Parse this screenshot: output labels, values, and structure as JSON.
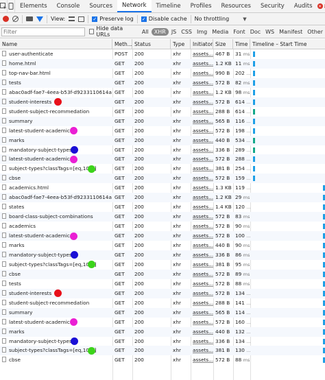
{
  "tabs": [
    "Elements",
    "Console",
    "Sources",
    "Network",
    "Timeline",
    "Profiles",
    "Resources",
    "Security",
    "Audits"
  ],
  "active_tab": "Network",
  "error_count": "8",
  "toolbar": {
    "view_label": "View:",
    "preserve_log": "Preserve log",
    "disable_cache": "Disable cache",
    "throttling": "No throttling"
  },
  "filter": {
    "placeholder": "Filter",
    "hide_data_urls": "Hide data URLs",
    "types": [
      "All",
      "XHR",
      "JS",
      "CSS",
      "Img",
      "Media",
      "Font",
      "Doc",
      "WS",
      "Manifest",
      "Other"
    ],
    "active_type": "XHR"
  },
  "columns": {
    "name": "Name",
    "method": "Meth...",
    "status": "Status",
    "type": "Type",
    "initiator": "Initiator",
    "size": "Size",
    "time": "Time",
    "timeline": "Timeline – Start Time"
  },
  "colors": {
    "red": "#e8101a",
    "magenta": "#ea1fd4",
    "blue": "#1a0fd6",
    "green": "#3cd41a",
    "bar": "#1e9fe6",
    "bar_teal": "#13a88a"
  },
  "rows": [
    {
      "name": "user-authenticate",
      "method": "POST",
      "status": "200",
      "type": "xhr",
      "initiator": "assets...",
      "size": "467 B",
      "time": "31",
      "time_unit": "ms",
      "marker": "",
      "bar_pos": 0.04,
      "bar_color": "blue"
    },
    {
      "name": "home.html",
      "method": "GET",
      "status": "200",
      "type": "xhr",
      "initiator": "assets...",
      "size": "1.2 KB",
      "time": "11",
      "time_unit": "ms",
      "marker": "",
      "bar_pos": 0.04,
      "bar_color": "blue"
    },
    {
      "name": "top-nav-bar.html",
      "method": "GET",
      "status": "200",
      "type": "xhr",
      "initiator": "assets...",
      "size": "990 B",
      "time": "202",
      "time_unit": "...",
      "marker": "",
      "bar_pos": 0.04,
      "bar_color": "blue"
    },
    {
      "name": "tests",
      "method": "GET",
      "status": "200",
      "type": "xhr",
      "initiator": "assets...",
      "size": "572 B",
      "time": "82",
      "time_unit": "ms",
      "marker": "",
      "bar_pos": 0.04,
      "bar_color": "blue"
    },
    {
      "name": "abac0adf-fae7-4eea-b53f-d9233110614a",
      "method": "GET",
      "status": "200",
      "type": "xhr",
      "initiator": "assets...",
      "size": "1.2 KB",
      "time": "98",
      "time_unit": "ms",
      "marker": "",
      "bar_pos": 0.04,
      "bar_color": "blue"
    },
    {
      "name": "student-interests",
      "method": "GET",
      "status": "200",
      "type": "xhr",
      "initiator": "assets...",
      "size": "572 B",
      "time": "614",
      "time_unit": "...",
      "marker": "red",
      "bar_pos": 0.04,
      "bar_color": "blue"
    },
    {
      "name": "student-subject-recommedation",
      "method": "GET",
      "status": "200",
      "type": "xhr",
      "initiator": "assets...",
      "size": "288 B",
      "time": "614",
      "time_unit": "...",
      "marker": "",
      "bar_pos": 0.04,
      "bar_color": "teal"
    },
    {
      "name": "summary",
      "method": "GET",
      "status": "200",
      "type": "xhr",
      "initiator": "assets...",
      "size": "565 B",
      "time": "116",
      "time_unit": "...",
      "marker": "",
      "bar_pos": 0.04,
      "bar_color": "blue"
    },
    {
      "name": "latest-student-academic",
      "method": "GET",
      "status": "200",
      "type": "xhr",
      "initiator": "assets...",
      "size": "572 B",
      "time": "198",
      "time_unit": "...",
      "marker": "magenta",
      "bar_pos": 0.04,
      "bar_color": "blue"
    },
    {
      "name": "marks",
      "method": "GET",
      "status": "200",
      "type": "xhr",
      "initiator": "assets...",
      "size": "440 B",
      "time": "534",
      "time_unit": "...",
      "marker": "",
      "bar_pos": 0.04,
      "bar_color": "teal"
    },
    {
      "name": "mandatory-subject-types",
      "method": "GET",
      "status": "200",
      "type": "xhr",
      "initiator": "assets...",
      "size": "336 B",
      "time": "289",
      "time_unit": "...",
      "marker": "blue",
      "bar_pos": 0.04,
      "bar_color": "teal"
    },
    {
      "name": "latest-student-academic",
      "method": "GET",
      "status": "200",
      "type": "xhr",
      "initiator": "assets...",
      "size": "572 B",
      "time": "288",
      "time_unit": "...",
      "marker": "magenta",
      "bar_pos": 0.04,
      "bar_color": "blue"
    },
    {
      "name": "subject-types?classTags=[eq,10th]",
      "method": "GET",
      "status": "200",
      "type": "xhr",
      "initiator": "assets...",
      "size": "381 B",
      "time": "254",
      "time_unit": "...",
      "marker": "green",
      "bar_pos": 0.04,
      "bar_color": "blue"
    },
    {
      "name": "cbse",
      "method": "GET",
      "status": "200",
      "type": "xhr",
      "initiator": "assets...",
      "size": "572 B",
      "time": "159",
      "time_unit": "...",
      "marker": "",
      "bar_pos": 0.04,
      "bar_color": "blue"
    },
    {
      "name": "academics.html",
      "method": "GET",
      "status": "200",
      "type": "xhr",
      "initiator": "assets...",
      "size": "1.3 KB",
      "time": "119",
      "time_unit": "...",
      "marker": "",
      "bar_pos": 0.97,
      "bar_color": "blue"
    },
    {
      "name": "abac0adf-fae7-4eea-b53f-d9233110614a",
      "method": "GET",
      "status": "200",
      "type": "xhr",
      "initiator": "assets...",
      "size": "1.2 KB",
      "time": "29",
      "time_unit": "ms",
      "marker": "",
      "bar_pos": 0.97,
      "bar_color": "blue"
    },
    {
      "name": "states",
      "method": "GET",
      "status": "200",
      "type": "xhr",
      "initiator": "assets...",
      "size": "1.4 KB",
      "time": "120",
      "time_unit": "...",
      "marker": "",
      "bar_pos": 0.97,
      "bar_color": "blue"
    },
    {
      "name": "board-class-subject-combinations",
      "method": "GET",
      "status": "200",
      "type": "xhr",
      "initiator": "assets...",
      "size": "572 B",
      "time": "83",
      "time_unit": "ms",
      "marker": "",
      "bar_pos": 0.97,
      "bar_color": "blue"
    },
    {
      "name": "academics",
      "method": "GET",
      "status": "200",
      "type": "xhr",
      "initiator": "assets...",
      "size": "572 B",
      "time": "90",
      "time_unit": "ms",
      "marker": "",
      "bar_pos": 0.97,
      "bar_color": "blue"
    },
    {
      "name": "latest-student-academic",
      "method": "GET",
      "status": "200",
      "type": "xhr",
      "initiator": "assets...",
      "size": "572 B",
      "time": "100",
      "time_unit": "...",
      "marker": "magenta",
      "bar_pos": 0.97,
      "bar_color": "blue"
    },
    {
      "name": "marks",
      "method": "GET",
      "status": "200",
      "type": "xhr",
      "initiator": "assets...",
      "size": "440 B",
      "time": "90",
      "time_unit": "ms",
      "marker": "",
      "bar_pos": 0.97,
      "bar_color": "blue"
    },
    {
      "name": "mandatory-subject-types",
      "method": "GET",
      "status": "200",
      "type": "xhr",
      "initiator": "assets...",
      "size": "336 B",
      "time": "86",
      "time_unit": "ms",
      "marker": "blue",
      "bar_pos": 0.97,
      "bar_color": "blue"
    },
    {
      "name": "subject-types?classTags=[eq,10th]",
      "method": "GET",
      "status": "200",
      "type": "xhr",
      "initiator": "assets...",
      "size": "381 B",
      "time": "95",
      "time_unit": "ms",
      "marker": "green",
      "bar_pos": 0.97,
      "bar_color": "blue"
    },
    {
      "name": "cbse",
      "method": "GET",
      "status": "200",
      "type": "xhr",
      "initiator": "assets...",
      "size": "572 B",
      "time": "89",
      "time_unit": "ms",
      "marker": "",
      "bar_pos": 0.97,
      "bar_color": "blue"
    },
    {
      "name": "tests",
      "method": "GET",
      "status": "200",
      "type": "xhr",
      "initiator": "assets...",
      "size": "572 B",
      "time": "88",
      "time_unit": "ms",
      "marker": "",
      "bar_pos": 0.97,
      "bar_color": "blue"
    },
    {
      "name": "student-interests",
      "method": "GET",
      "status": "200",
      "type": "xhr",
      "initiator": "assets...",
      "size": "572 B",
      "time": "134",
      "time_unit": "...",
      "marker": "red",
      "bar_pos": 0.97,
      "bar_color": "blue"
    },
    {
      "name": "student-subject-recommedation",
      "method": "GET",
      "status": "200",
      "type": "xhr",
      "initiator": "assets...",
      "size": "288 B",
      "time": "141",
      "time_unit": "...",
      "marker": "",
      "bar_pos": 0.97,
      "bar_color": "blue"
    },
    {
      "name": "summary",
      "method": "GET",
      "status": "200",
      "type": "xhr",
      "initiator": "assets...",
      "size": "565 B",
      "time": "114",
      "time_unit": "...",
      "marker": "",
      "bar_pos": 0.97,
      "bar_color": "blue"
    },
    {
      "name": "latest-student-academic",
      "method": "GET",
      "status": "200",
      "type": "xhr",
      "initiator": "assets...",
      "size": "572 B",
      "time": "160",
      "time_unit": "...",
      "marker": "magenta",
      "bar_pos": 0.97,
      "bar_color": "blue"
    },
    {
      "name": "marks",
      "method": "GET",
      "status": "200",
      "type": "xhr",
      "initiator": "assets...",
      "size": "440 B",
      "time": "132",
      "time_unit": "...",
      "marker": "",
      "bar_pos": 0.97,
      "bar_color": "blue"
    },
    {
      "name": "mandatory-subject-types",
      "method": "GET",
      "status": "200",
      "type": "xhr",
      "initiator": "assets...",
      "size": "336 B",
      "time": "134",
      "time_unit": "...",
      "marker": "blue",
      "bar_pos": 0.97,
      "bar_color": "blue"
    },
    {
      "name": "subject-types?classTags=[eq,10th]",
      "method": "GET",
      "status": "200",
      "type": "xhr",
      "initiator": "assets...",
      "size": "381 B",
      "time": "130",
      "time_unit": "...",
      "marker": "green",
      "bar_pos": 0.97,
      "bar_color": "blue"
    },
    {
      "name": "cbse",
      "method": "GET",
      "status": "200",
      "type": "xhr",
      "initiator": "assets...",
      "size": "572 B",
      "time": "88",
      "time_unit": "ms",
      "marker": "",
      "bar_pos": 0.97,
      "bar_color": "blue"
    }
  ]
}
